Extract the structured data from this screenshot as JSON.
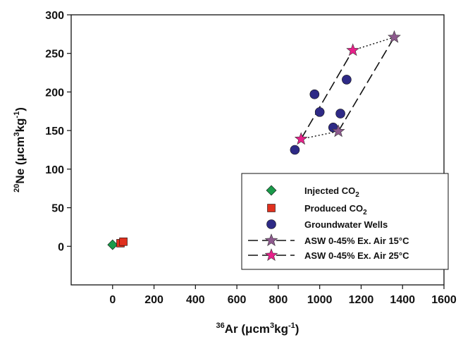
{
  "chart_data": {
    "type": "scatter",
    "xlim": [
      -200,
      1600
    ],
    "ylim": [
      -50,
      300
    ],
    "xticks": [
      0,
      200,
      400,
      600,
      800,
      1000,
      1200,
      1400,
      1600
    ],
    "yticks": [
      0,
      50,
      100,
      150,
      200,
      250,
      300
    ],
    "x_tick_labels": [
      "0",
      "200",
      "400",
      "600",
      "800",
      "1000",
      "1200",
      "1400",
      "1600"
    ],
    "y_tick_labels": [
      "0",
      "50",
      "100",
      "150",
      "200",
      "250",
      "300"
    ],
    "xlabel": {
      "sup": "36",
      "main": "Ar (μcm",
      "sup2": "3",
      "mid": "kg",
      "sup3": "-1",
      "end": ")"
    },
    "ylabel": {
      "sup": "20",
      "main": "Ne (μcm",
      "sup2": "3",
      "mid": "kg",
      "sup3": "-1",
      "end": ")"
    },
    "series": [
      {
        "name": "Injected CO2",
        "name_main": "Injected CO",
        "name_sub": "2",
        "marker": "diamond",
        "color": "#1a9a4a",
        "x": [
          0
        ],
        "y": [
          2
        ]
      },
      {
        "name": "Produced CO2",
        "name_main": "Produced CO",
        "name_sub": "2",
        "marker": "square",
        "color": "#e0301e",
        "x": [
          38,
          52
        ],
        "y": [
          4,
          6
        ]
      },
      {
        "name": "Groundwater Wells",
        "name_main": "Groundwater Wells",
        "name_sub": "",
        "marker": "circle",
        "color": "#2e2a86",
        "x": [
          880,
          975,
          1000,
          1065,
          1100,
          1130
        ],
        "y": [
          125,
          197,
          174,
          154,
          172,
          216
        ]
      },
      {
        "name": "ASW 0-45% Ex. Air 15°C",
        "name_main": "ASW 0-45% Ex. Air 15°C",
        "name_sub": "",
        "marker": "star",
        "color": "#8e5a8e",
        "line": "dashed",
        "x": [
          1090,
          1360
        ],
        "y": [
          149,
          271
        ]
      },
      {
        "name": "ASW 0-45% Ex. Air 25°C",
        "name_main": "ASW 0-45% Ex. Air 25°C",
        "name_sub": "",
        "marker": "star",
        "color": "#e8208a",
        "line": "dashed",
        "x": [
          910,
          1160
        ],
        "y": [
          139,
          254
        ]
      }
    ],
    "connectors": [
      {
        "style": "dotted",
        "x": [
          910,
          1090
        ],
        "y": [
          139,
          149
        ]
      },
      {
        "style": "dotted",
        "x": [
          1160,
          1360
        ],
        "y": [
          254,
          271
        ]
      }
    ],
    "legend": {
      "placement": "lower-right"
    }
  }
}
